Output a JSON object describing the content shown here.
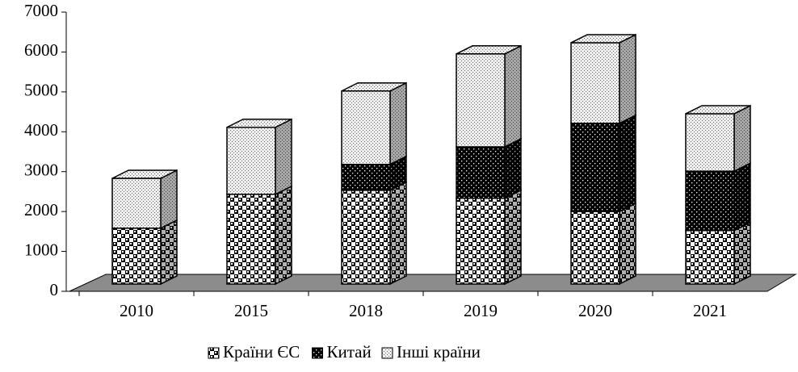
{
  "chart_data": {
    "type": "bar3d_stacked",
    "categories": [
      "2010",
      "2015",
      "2018",
      "2019",
      "2020",
      "2021"
    ],
    "series": [
      {
        "name": "Країни ЄС",
        "color": "#ffffff",
        "values": [
          1400,
          2250,
          2350,
          2150,
          1820,
          1340
        ]
      },
      {
        "name": "Китай",
        "color": "#000000",
        "values": [
          0,
          0,
          650,
          1290,
          2210,
          1490
        ]
      },
      {
        "name": "Інші країни",
        "color": "#e6e6e6",
        "values": [
          1250,
          1680,
          1840,
          2330,
          2020,
          1440
        ]
      }
    ],
    "ylim": [
      0,
      7000
    ],
    "yticks": [
      0,
      1000,
      2000,
      3000,
      4000,
      5000,
      6000,
      7000
    ]
  }
}
